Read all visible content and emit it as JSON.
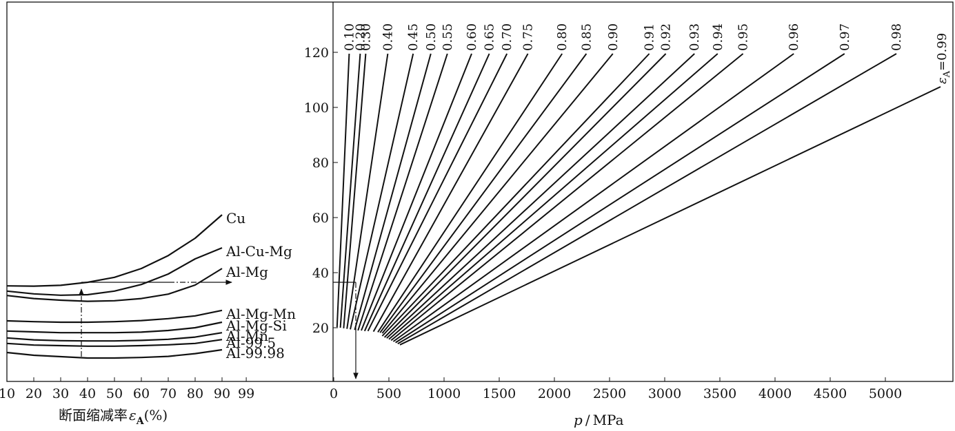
{
  "chart_data": {
    "type": "line",
    "left_panel": {
      "xlabel": "断面缩减率",
      "xlabel_symbol": "ε",
      "xlabel_sub": "A",
      "xlabel_unit": "(%)",
      "x_ticks": [
        "10",
        "20",
        "30",
        "40",
        "50",
        "60",
        "70",
        "80",
        "90",
        "99"
      ],
      "series": [
        {
          "name": "Cu",
          "x": [
            10,
            20,
            30,
            40,
            50,
            60,
            70,
            80,
            90
          ],
          "y": [
            35.2,
            35.1,
            35.4,
            36.5,
            38.3,
            41.5,
            46.2,
            52.5,
            61.0
          ]
        },
        {
          "name": "Al-Cu-Mg",
          "x": [
            10,
            20,
            30,
            40,
            50,
            60,
            70,
            80,
            90
          ],
          "y": [
            33.3,
            32.3,
            31.8,
            32.0,
            33.3,
            35.7,
            39.5,
            45.0,
            49.0
          ]
        },
        {
          "name": "Al-Mg",
          "x": [
            10,
            20,
            30,
            40,
            50,
            60,
            70,
            80,
            90
          ],
          "y": [
            31.7,
            30.6,
            30.0,
            29.6,
            29.8,
            30.6,
            32.2,
            35.5,
            41.5
          ]
        },
        {
          "name": "Al-Mg-Mn",
          "x": [
            10,
            20,
            30,
            40,
            50,
            60,
            70,
            80,
            90
          ],
          "y": [
            22.5,
            22.2,
            22.0,
            22.0,
            22.2,
            22.6,
            23.3,
            24.3,
            26.3
          ]
        },
        {
          "name": "Al-Mg-Si",
          "x": [
            10,
            20,
            30,
            40,
            50,
            60,
            70,
            80,
            90
          ],
          "y": [
            18.8,
            18.5,
            18.2,
            18.2,
            18.2,
            18.4,
            19.0,
            20.0,
            22.0
          ]
        },
        {
          "name": "Al-Mn",
          "x": [
            10,
            20,
            30,
            40,
            50,
            60,
            70,
            80,
            90
          ],
          "y": [
            16.3,
            15.6,
            15.3,
            15.2,
            15.2,
            15.4,
            15.8,
            16.6,
            18.2
          ]
        },
        {
          "name": "Al-99.5",
          "x": [
            10,
            20,
            30,
            40,
            50,
            60,
            70,
            80,
            90
          ],
          "y": [
            14.3,
            13.7,
            13.5,
            13.3,
            13.3,
            13.5,
            13.8,
            14.3,
            15.7
          ]
        },
        {
          "name": "Al-99.98",
          "x": [
            10,
            20,
            30,
            40,
            50,
            60,
            70,
            80,
            90
          ],
          "y": [
            11.0,
            10.0,
            9.5,
            9.0,
            9.0,
            9.2,
            9.6,
            10.6,
            12.0
          ]
        }
      ]
    },
    "right_panel": {
      "xlabel_symbol": "p",
      "xlabel_sep": "/",
      "xlabel_unit": "MPa",
      "x_ticks": [
        "0",
        "500",
        "1000",
        "1500",
        "2000",
        "2500",
        "3000",
        "3500",
        "4000",
        "4500",
        "5000"
      ],
      "y_ticks": [
        "20",
        "40",
        "60",
        "80",
        "100",
        "120"
      ],
      "ylim": [
        0,
        130
      ],
      "xlim": [
        0,
        5600
      ],
      "series": [
        {
          "name": "0.10",
          "x": [
            30,
            140
          ],
          "y": [
            20.2,
            119.5
          ]
        },
        {
          "name": "0.20",
          "x": [
            60,
            240
          ],
          "y": [
            20.0,
            119.5
          ]
        },
        {
          "name": "0.30",
          "x": [
            90,
            290
          ],
          "y": [
            19.8,
            119.5
          ]
        },
        {
          "name": "0.40",
          "x": [
            120,
            490
          ],
          "y": [
            19.6,
            119.5
          ]
        },
        {
          "name": "0.45",
          "x": [
            150,
            720
          ],
          "y": [
            19.4,
            119.5
          ]
        },
        {
          "name": "0.50",
          "x": [
            190,
            880
          ],
          "y": [
            19.2,
            119.5
          ]
        },
        {
          "name": "0.55",
          "x": [
            220,
            1030
          ],
          "y": [
            19.0,
            119.5
          ]
        },
        {
          "name": "0.60",
          "x": [
            250,
            1250
          ],
          "y": [
            19.0,
            119.5
          ]
        },
        {
          "name": "0.65",
          "x": [
            280,
            1410
          ],
          "y": [
            18.8,
            119.5
          ]
        },
        {
          "name": "0.70",
          "x": [
            310,
            1570
          ],
          "y": [
            18.8,
            119.5
          ]
        },
        {
          "name": "0.75",
          "x": [
            360,
            1760
          ],
          "y": [
            18.6,
            119.5
          ]
        },
        {
          "name": "0.80",
          "x": [
            400,
            2070
          ],
          "y": [
            18.4,
            119.5
          ]
        },
        {
          "name": "0.85",
          "x": [
            420,
            2290
          ],
          "y": [
            18.2,
            119.5
          ]
        },
        {
          "name": "0.90",
          "x": [
            440,
            2530
          ],
          "y": [
            18.0,
            119.5
          ]
        },
        {
          "name": "0.91",
          "x": [
            440,
            2860
          ],
          "y": [
            17.0,
            119.5
          ]
        },
        {
          "name": "0.92",
          "x": [
            460,
            3010
          ],
          "y": [
            16.5,
            119.5
          ]
        },
        {
          "name": "0.93",
          "x": [
            480,
            3270
          ],
          "y": [
            16.2,
            119.5
          ]
        },
        {
          "name": "0.94",
          "x": [
            500,
            3480
          ],
          "y": [
            15.8,
            119.5
          ]
        },
        {
          "name": "0.95",
          "x": [
            520,
            3710
          ],
          "y": [
            15.4,
            119.5
          ]
        },
        {
          "name": "0.96",
          "x": [
            540,
            4170
          ],
          "y": [
            15.0,
            119.5
          ]
        },
        {
          "name": "0.97",
          "x": [
            560,
            4630
          ],
          "y": [
            14.6,
            119.5
          ]
        },
        {
          "name": "0.98",
          "x": [
            580,
            5100
          ],
          "y": [
            14.2,
            119.5
          ]
        },
        {
          "name": "0.99",
          "x": [
            600,
            5500
          ],
          "y": [
            13.8,
            107.5
          ]
        }
      ],
      "last_label_symbol": "ε",
      "last_label_sub": "A",
      "last_label_value": "=0.99"
    },
    "grid": false,
    "colors": {
      "line": "#111111",
      "background": "#ffffff"
    }
  }
}
